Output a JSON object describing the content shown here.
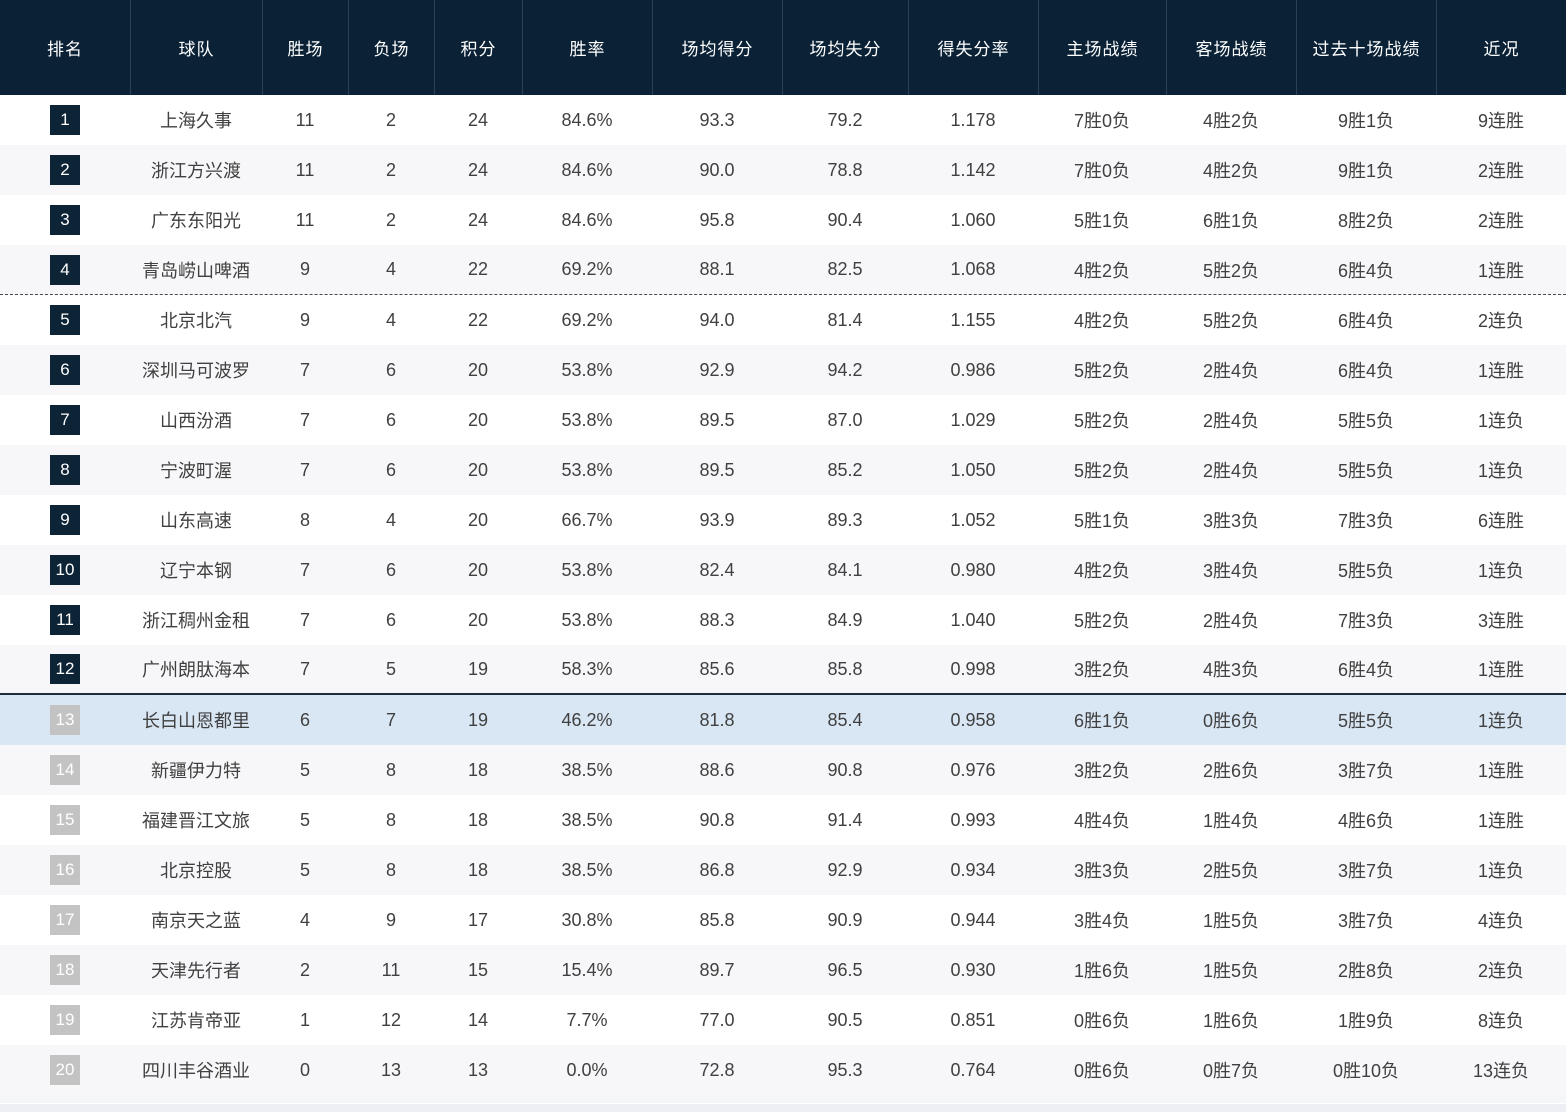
{
  "table": {
    "columns": [
      {
        "key": "rank",
        "label": "排名"
      },
      {
        "key": "team",
        "label": "球队"
      },
      {
        "key": "wins",
        "label": "胜场"
      },
      {
        "key": "losses",
        "label": "负场"
      },
      {
        "key": "points",
        "label": "积分"
      },
      {
        "key": "win_rate",
        "label": "胜率"
      },
      {
        "key": "avg_scored",
        "label": "场均得分"
      },
      {
        "key": "avg_allowed",
        "label": "场均失分"
      },
      {
        "key": "score_ratio",
        "label": "得失分率"
      },
      {
        "key": "home_record",
        "label": "主场战绩"
      },
      {
        "key": "away_record",
        "label": "客场战绩"
      },
      {
        "key": "last10",
        "label": "过去十场战绩"
      },
      {
        "key": "streak",
        "label": "近况"
      }
    ],
    "rows": [
      {
        "rank": "1",
        "team": "上海久事",
        "wins": "11",
        "losses": "2",
        "points": "24",
        "win_rate": "84.6%",
        "avg_scored": "93.3",
        "avg_allowed": "79.2",
        "score_ratio": "1.178",
        "home_record": "7胜0负",
        "away_record": "4胜2负",
        "last10": "9胜1负",
        "streak": "9连胜"
      },
      {
        "rank": "2",
        "team": "浙江方兴渡",
        "wins": "11",
        "losses": "2",
        "points": "24",
        "win_rate": "84.6%",
        "avg_scored": "90.0",
        "avg_allowed": "78.8",
        "score_ratio": "1.142",
        "home_record": "7胜0负",
        "away_record": "4胜2负",
        "last10": "9胜1负",
        "streak": "2连胜"
      },
      {
        "rank": "3",
        "team": "广东东阳光",
        "wins": "11",
        "losses": "2",
        "points": "24",
        "win_rate": "84.6%",
        "avg_scored": "95.8",
        "avg_allowed": "90.4",
        "score_ratio": "1.060",
        "home_record": "5胜1负",
        "away_record": "6胜1负",
        "last10": "8胜2负",
        "streak": "2连胜"
      },
      {
        "rank": "4",
        "team": "青岛崂山啤酒",
        "wins": "9",
        "losses": "4",
        "points": "22",
        "win_rate": "69.2%",
        "avg_scored": "88.1",
        "avg_allowed": "82.5",
        "score_ratio": "1.068",
        "home_record": "4胜2负",
        "away_record": "5胜2负",
        "last10": "6胜4负",
        "streak": "1连胜"
      },
      {
        "rank": "5",
        "team": "北京北汽",
        "wins": "9",
        "losses": "4",
        "points": "22",
        "win_rate": "69.2%",
        "avg_scored": "94.0",
        "avg_allowed": "81.4",
        "score_ratio": "1.155",
        "home_record": "4胜2负",
        "away_record": "5胜2负",
        "last10": "6胜4负",
        "streak": "2连负"
      },
      {
        "rank": "6",
        "team": "深圳马可波罗",
        "wins": "7",
        "losses": "6",
        "points": "20",
        "win_rate": "53.8%",
        "avg_scored": "92.9",
        "avg_allowed": "94.2",
        "score_ratio": "0.986",
        "home_record": "5胜2负",
        "away_record": "2胜4负",
        "last10": "6胜4负",
        "streak": "1连胜"
      },
      {
        "rank": "7",
        "team": "山西汾酒",
        "wins": "7",
        "losses": "6",
        "points": "20",
        "win_rate": "53.8%",
        "avg_scored": "89.5",
        "avg_allowed": "87.0",
        "score_ratio": "1.029",
        "home_record": "5胜2负",
        "away_record": "2胜4负",
        "last10": "5胜5负",
        "streak": "1连负"
      },
      {
        "rank": "8",
        "team": "宁波町渥",
        "wins": "7",
        "losses": "6",
        "points": "20",
        "win_rate": "53.8%",
        "avg_scored": "89.5",
        "avg_allowed": "85.2",
        "score_ratio": "1.050",
        "home_record": "5胜2负",
        "away_record": "2胜4负",
        "last10": "5胜5负",
        "streak": "1连负"
      },
      {
        "rank": "9",
        "team": "山东高速",
        "wins": "8",
        "losses": "4",
        "points": "20",
        "win_rate": "66.7%",
        "avg_scored": "93.9",
        "avg_allowed": "89.3",
        "score_ratio": "1.052",
        "home_record": "5胜1负",
        "away_record": "3胜3负",
        "last10": "7胜3负",
        "streak": "6连胜"
      },
      {
        "rank": "10",
        "team": "辽宁本钢",
        "wins": "7",
        "losses": "6",
        "points": "20",
        "win_rate": "53.8%",
        "avg_scored": "82.4",
        "avg_allowed": "84.1",
        "score_ratio": "0.980",
        "home_record": "4胜2负",
        "away_record": "3胜4负",
        "last10": "5胜5负",
        "streak": "1连负"
      },
      {
        "rank": "11",
        "team": "浙江稠州金租",
        "wins": "7",
        "losses": "6",
        "points": "20",
        "win_rate": "53.8%",
        "avg_scored": "88.3",
        "avg_allowed": "84.9",
        "score_ratio": "1.040",
        "home_record": "5胜2负",
        "away_record": "2胜4负",
        "last10": "7胜3负",
        "streak": "3连胜"
      },
      {
        "rank": "12",
        "team": "广州朗肽海本",
        "wins": "7",
        "losses": "5",
        "points": "19",
        "win_rate": "58.3%",
        "avg_scored": "85.6",
        "avg_allowed": "85.8",
        "score_ratio": "0.998",
        "home_record": "3胜2负",
        "away_record": "4胜3负",
        "last10": "6胜4负",
        "streak": "1连胜"
      },
      {
        "rank": "13",
        "team": "长白山恩都里",
        "wins": "6",
        "losses": "7",
        "points": "19",
        "win_rate": "46.2%",
        "avg_scored": "81.8",
        "avg_allowed": "85.4",
        "score_ratio": "0.958",
        "home_record": "6胜1负",
        "away_record": "0胜6负",
        "last10": "5胜5负",
        "streak": "1连负"
      },
      {
        "rank": "14",
        "team": "新疆伊力特",
        "wins": "5",
        "losses": "8",
        "points": "18",
        "win_rate": "38.5%",
        "avg_scored": "88.6",
        "avg_allowed": "90.8",
        "score_ratio": "0.976",
        "home_record": "3胜2负",
        "away_record": "2胜6负",
        "last10": "3胜7负",
        "streak": "1连胜"
      },
      {
        "rank": "15",
        "team": "福建晋江文旅",
        "wins": "5",
        "losses": "8",
        "points": "18",
        "win_rate": "38.5%",
        "avg_scored": "90.8",
        "avg_allowed": "91.4",
        "score_ratio": "0.993",
        "home_record": "4胜4负",
        "away_record": "1胜4负",
        "last10": "4胜6负",
        "streak": "1连胜"
      },
      {
        "rank": "16",
        "team": "北京控股",
        "wins": "5",
        "losses": "8",
        "points": "18",
        "win_rate": "38.5%",
        "avg_scored": "86.8",
        "avg_allowed": "92.9",
        "score_ratio": "0.934",
        "home_record": "3胜3负",
        "away_record": "2胜5负",
        "last10": "3胜7负",
        "streak": "1连负"
      },
      {
        "rank": "17",
        "team": "南京天之蓝",
        "wins": "4",
        "losses": "9",
        "points": "17",
        "win_rate": "30.8%",
        "avg_scored": "85.8",
        "avg_allowed": "90.9",
        "score_ratio": "0.944",
        "home_record": "3胜4负",
        "away_record": "1胜5负",
        "last10": "3胜7负",
        "streak": "4连负"
      },
      {
        "rank": "18",
        "team": "天津先行者",
        "wins": "2",
        "losses": "11",
        "points": "15",
        "win_rate": "15.4%",
        "avg_scored": "89.7",
        "avg_allowed": "96.5",
        "score_ratio": "0.930",
        "home_record": "1胜6负",
        "away_record": "1胜5负",
        "last10": "2胜8负",
        "streak": "2连负"
      },
      {
        "rank": "19",
        "team": "江苏肯帝亚",
        "wins": "1",
        "losses": "12",
        "points": "14",
        "win_rate": "7.7%",
        "avg_scored": "77.0",
        "avg_allowed": "90.5",
        "score_ratio": "0.851",
        "home_record": "0胜6负",
        "away_record": "1胜6负",
        "last10": "1胜9负",
        "streak": "8连负"
      },
      {
        "rank": "20",
        "team": "四川丰谷酒业",
        "wins": "0",
        "losses": "13",
        "points": "13",
        "win_rate": "0.0%",
        "avg_scored": "72.8",
        "avg_allowed": "95.3",
        "score_ratio": "0.764",
        "home_record": "0胜6负",
        "away_record": "0胜7负",
        "last10": "0胜10负",
        "streak": "13连负"
      }
    ],
    "highlighted_rank": 13,
    "dashed_divider_after_rank": 4,
    "solid_divider_after_rank": 12,
    "dark_badge_max_rank": 12,
    "colors": {
      "header_bg": "#0a2136",
      "header_divider": "#2b4156",
      "badge_dark": "#0d2336",
      "badge_gray": "#c3c3c3",
      "highlight_row_bg": "#d9e6f3",
      "row_alt_bg": "#f7f7f9"
    }
  }
}
